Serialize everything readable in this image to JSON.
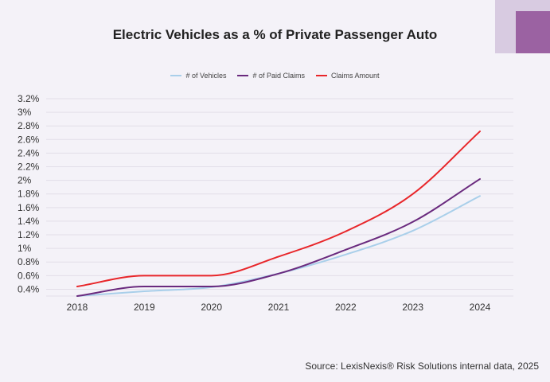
{
  "title": "Electric Vehicles as a % of Private Passenger Auto",
  "source": "Source: LexisNexis® Risk Solutions internal data, 2025",
  "chart_data": {
    "type": "line",
    "title": "Electric Vehicles as a % of Private Passenger Auto",
    "x": [
      "2018",
      "2019",
      "2020",
      "2021",
      "2022",
      "2023",
      "2024"
    ],
    "ylim": [
      0.3,
      3.2
    ],
    "yticks": [
      "3.2%",
      "3%",
      "2.8%",
      "2.6%",
      "2.4%",
      "2.2%",
      "2%",
      "1.8%",
      "1.6%",
      "1.4%",
      "1.2%",
      "1%",
      "0.8%",
      "0.6%",
      "0.4%"
    ],
    "ytick_values": [
      3.2,
      3.0,
      2.8,
      2.6,
      2.4,
      2.2,
      2.0,
      1.8,
      1.6,
      1.4,
      1.2,
      1.0,
      0.8,
      0.6,
      0.4
    ],
    "grid": true,
    "legend": "top-center",
    "series": [
      {
        "name": "# of Vehicles",
        "color": "#a9cfea",
        "values": [
          0.3,
          0.37,
          0.43,
          0.63,
          0.91,
          1.26,
          1.77
        ]
      },
      {
        "name": "# of Paid Claims",
        "color": "#6a2a7e",
        "values": [
          0.3,
          0.44,
          0.44,
          0.63,
          0.98,
          1.39,
          2.02
        ]
      },
      {
        "name": "Claims Amount",
        "color": "#e8262a",
        "values": [
          0.44,
          0.6,
          0.6,
          0.88,
          1.25,
          1.8,
          2.72
        ]
      }
    ]
  }
}
